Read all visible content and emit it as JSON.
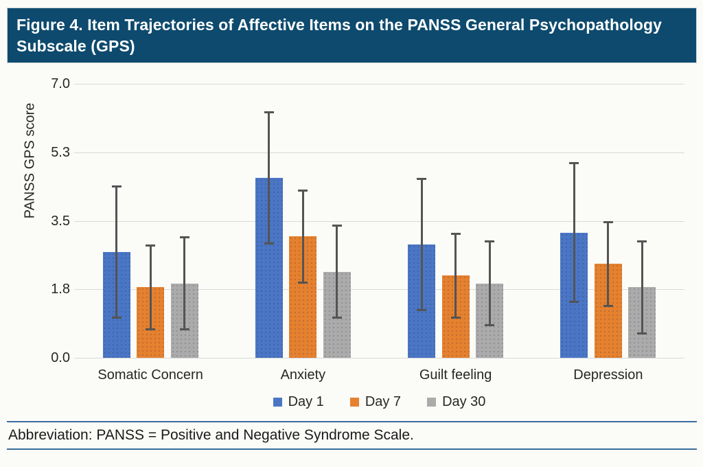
{
  "header": {
    "title": "Figure 4. Item Trajectories of Affective Items on the PANSS General Psychopathology Subscale (GPS)"
  },
  "footer": {
    "abbreviation": "Abbreviation: PANSS = Positive and Negative Syndrome Scale."
  },
  "colors": {
    "banner_bg": "#0d4a6e",
    "rule_blue": "#3a6d9e",
    "gridline": "#d9d9d9",
    "error_bar": "#545454",
    "series_day1": "#4a76c5",
    "series_day7": "#e5812f",
    "series_day30": "#ababab",
    "page_bg": "#fbfbf7",
    "title_text": "#ffffff"
  },
  "chart_data": {
    "type": "bar",
    "title": "",
    "xlabel": "",
    "ylabel": "PANSS GPS score",
    "ylim": [
      0,
      7
    ],
    "grid": true,
    "legend_position": "bottom",
    "yticks": [
      {
        "label": "0.0",
        "value": 0
      },
      {
        "label": "1.8",
        "value": 1.75
      },
      {
        "label": "3.5",
        "value": 3.5
      },
      {
        "label": "5.3",
        "value": 5.25
      },
      {
        "label": "7.0",
        "value": 7
      }
    ],
    "categories": [
      "Somatic Concern",
      "Anxiety",
      "Guilt feeling",
      "Depression"
    ],
    "series": [
      {
        "name": "Day 1",
        "color": "#4a76c5",
        "values": [
          2.7,
          4.6,
          2.9,
          3.2
        ],
        "error_low": [
          1.0,
          2.9,
          1.2,
          1.4
        ],
        "error_high": [
          4.4,
          6.3,
          4.6,
          5.0
        ]
      },
      {
        "name": "Day 7",
        "color": "#e5812f",
        "values": [
          1.8,
          3.1,
          2.1,
          2.4
        ],
        "error_low": [
          0.7,
          1.9,
          1.0,
          1.3
        ],
        "error_high": [
          2.9,
          4.3,
          3.2,
          3.5
        ]
      },
      {
        "name": "Day 30",
        "color": "#ababab",
        "values": [
          1.9,
          2.2,
          1.9,
          1.8
        ],
        "error_low": [
          0.7,
          1.0,
          0.8,
          0.6
        ],
        "error_high": [
          3.1,
          3.4,
          3.0,
          3.0
        ]
      }
    ]
  }
}
